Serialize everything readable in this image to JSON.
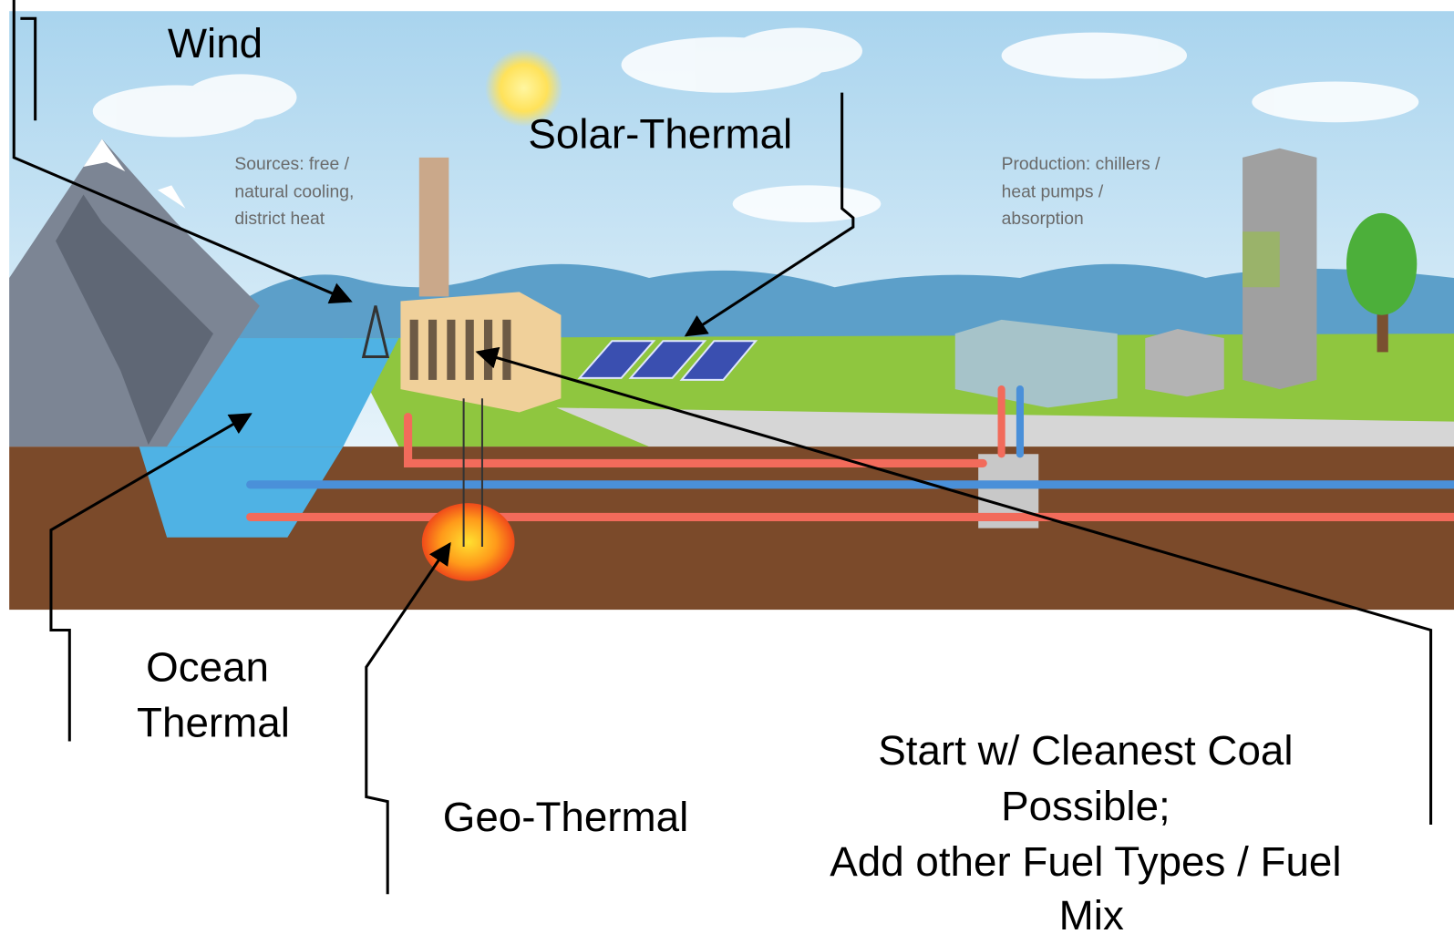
{
  "labels": {
    "wind": "Wind",
    "solar_thermal": "Solar-Thermal",
    "ocean_thermal": [
      "Ocean",
      "Thermal"
    ],
    "geo_thermal": "Geo-Thermal",
    "coal": [
      "Start w/ Cleanest Coal",
      "Possible;",
      "Add other Fuel Types / Fuel",
      "Mix"
    ]
  },
  "notes": {
    "sources": [
      "Sources: free /",
      "natural cooling,",
      "district heat"
    ],
    "production": [
      "Production: chillers /",
      "heat pumps /",
      "absorption"
    ]
  }
}
